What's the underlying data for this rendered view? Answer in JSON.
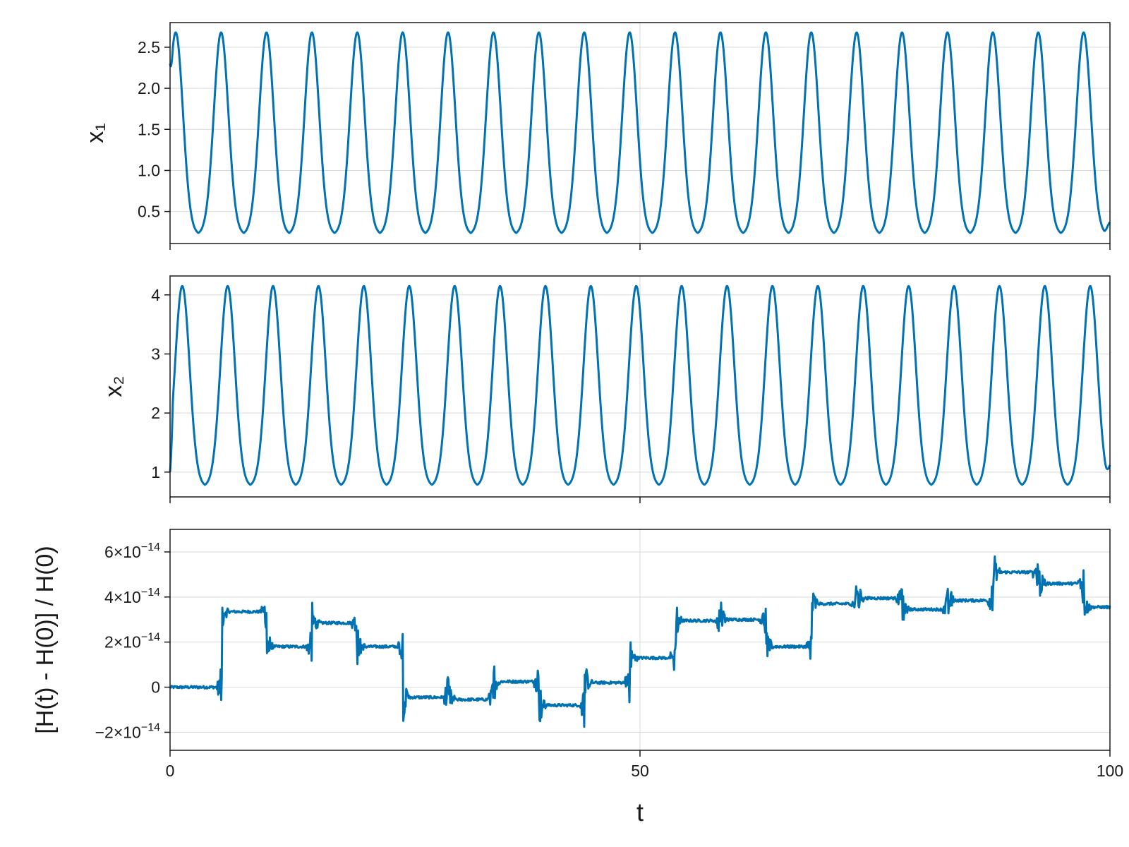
{
  "chart_data": [
    {
      "type": "line",
      "ylabel": "x₁",
      "xlabel": "",
      "xlim": [
        0,
        100
      ],
      "ylim": [
        0.11,
        2.8
      ],
      "x_ticks": [
        0,
        50,
        100
      ],
      "x_tick_labels_shown": false,
      "y_ticks": [
        0.5,
        1.0,
        1.5,
        2.0,
        2.5
      ],
      "y_tick_labels": [
        "0.5",
        "1.0",
        "1.5",
        "2.0",
        "2.5"
      ],
      "grid": true,
      "color": "#0072b2",
      "series": [
        {
          "kind": "periodic_oscillation",
          "x": [
            0,
            5,
            10,
            15,
            20,
            25,
            30,
            35,
            40,
            45,
            50,
            55,
            60,
            65,
            70,
            75,
            80,
            85,
            90,
            95,
            100
          ],
          "values": [
            2.3,
            0.22,
            0.27,
            0.24,
            0.27,
            0.24,
            0.27,
            0.24,
            0.27,
            0.24,
            0.27,
            0.24,
            0.27,
            0.24,
            0.27,
            0.24,
            0.27,
            0.24,
            0.27,
            0.24,
            0.37
          ],
          "period": 4.83,
          "peak": 2.68,
          "trough": 0.22,
          "first_peak_t": 0.6
        }
      ]
    },
    {
      "type": "line",
      "ylabel": "x₂",
      "xlabel": "",
      "xlim": [
        0,
        100
      ],
      "ylim": [
        0.58,
        4.32
      ],
      "x_ticks": [
        0,
        50,
        100
      ],
      "x_tick_labels_shown": false,
      "y_ticks": [
        1,
        2,
        3,
        4
      ],
      "y_tick_labels": [
        "1",
        "2",
        "3",
        "4"
      ],
      "grid": true,
      "color": "#0072b2",
      "series": [
        {
          "kind": "periodic_oscillation",
          "x": [
            0,
            5,
            10,
            15,
            20,
            25,
            30,
            35,
            40,
            45,
            50,
            55,
            60,
            65,
            70,
            75,
            80,
            85,
            90,
            95,
            100
          ],
          "values": [
            1.0,
            0.85,
            0.9,
            0.85,
            0.9,
            0.85,
            0.9,
            0.85,
            0.9,
            0.85,
            0.9,
            0.85,
            0.9,
            0.85,
            0.9,
            0.85,
            0.9,
            0.85,
            0.9,
            0.85,
            1.12
          ],
          "period": 4.83,
          "peak": 4.15,
          "trough": 0.76,
          "first_peak_t": 1.3
        }
      ]
    },
    {
      "type": "line",
      "ylabel": "[H(t) - H(0)] / H(0)",
      "xlabel": "t",
      "xlim": [
        0,
        100
      ],
      "ylim": [
        -2.8e-14,
        7e-14
      ],
      "x_ticks": [
        0,
        50,
        100
      ],
      "x_tick_labels": [
        "0",
        "50",
        "100"
      ],
      "y_ticks": [
        -2e-14,
        0,
        2e-14,
        4e-14,
        6e-14
      ],
      "y_tick_labels": [
        {
          "mantissa": "−2×10",
          "exp": "−14"
        },
        {
          "mantissa": "0",
          "exp": ""
        },
        {
          "mantissa": "2×10",
          "exp": "−14"
        },
        {
          "mantissa": "4×10",
          "exp": "−14"
        },
        {
          "mantissa": "6×10",
          "exp": "−14"
        }
      ],
      "grid": true,
      "color": "#0072b2",
      "series": [
        {
          "kind": "step_with_spikes",
          "levels": [
            {
              "t0": 0.0,
              "t1": 5.5,
              "value": 0.0
            },
            {
              "t0": 5.5,
              "t1": 10.3,
              "value": 3.35e-14
            },
            {
              "t0": 10.3,
              "t1": 15.1,
              "value": 1.8e-14
            },
            {
              "t0": 15.1,
              "t1": 19.9,
              "value": 2.85e-14
            },
            {
              "t0": 19.9,
              "t1": 24.8,
              "value": 1.8e-14
            },
            {
              "t0": 24.8,
              "t1": 29.6,
              "value": -4.5e-15
            },
            {
              "t0": 29.6,
              "t1": 34.4,
              "value": -5.5e-15
            },
            {
              "t0": 34.4,
              "t1": 39.3,
              "value": 2.5e-15
            },
            {
              "t0": 39.3,
              "t1": 44.1,
              "value": -8e-15
            },
            {
              "t0": 44.1,
              "t1": 48.9,
              "value": 2e-15
            },
            {
              "t0": 48.9,
              "t1": 53.8,
              "value": 1.3e-14
            },
            {
              "t0": 53.8,
              "t1": 58.6,
              "value": 2.95e-14
            },
            {
              "t0": 58.6,
              "t1": 63.4,
              "value": 3e-14
            },
            {
              "t0": 63.4,
              "t1": 68.3,
              "value": 1.8e-14
            },
            {
              "t0": 68.3,
              "t1": 73.1,
              "value": 3.7e-14
            },
            {
              "t0": 73.1,
              "t1": 77.9,
              "value": 3.95e-14
            },
            {
              "t0": 77.9,
              "t1": 82.8,
              "value": 3.45e-14
            },
            {
              "t0": 82.8,
              "t1": 87.6,
              "value": 3.85e-14
            },
            {
              "t0": 87.6,
              "t1": 92.4,
              "value": 5.1e-14
            },
            {
              "t0": 92.4,
              "t1": 97.2,
              "value": 4.6e-14
            },
            {
              "t0": 97.2,
              "t1": 100.0,
              "value": 3.55e-14
            }
          ],
          "spike_peak_max": 6.4e-14,
          "spike_trough_min": -2.35e-14
        }
      ]
    }
  ]
}
